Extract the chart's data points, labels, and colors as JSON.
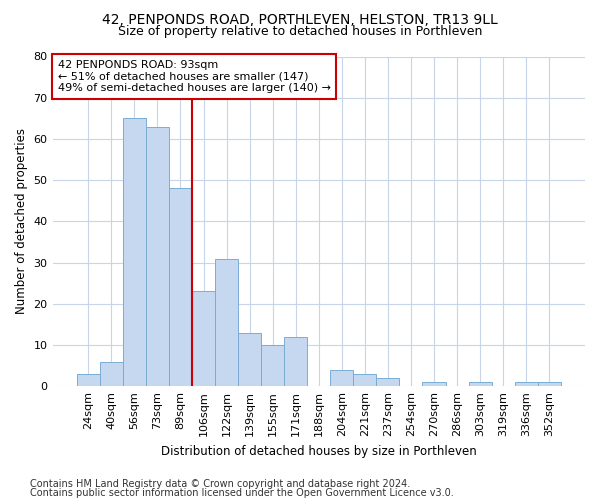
{
  "title1": "42, PENPONDS ROAD, PORTHLEVEN, HELSTON, TR13 9LL",
  "title2": "Size of property relative to detached houses in Porthleven",
  "xlabel": "Distribution of detached houses by size in Porthleven",
  "ylabel": "Number of detached properties",
  "categories": [
    "24sqm",
    "40sqm",
    "56sqm",
    "73sqm",
    "89sqm",
    "106sqm",
    "122sqm",
    "139sqm",
    "155sqm",
    "171sqm",
    "188sqm",
    "204sqm",
    "221sqm",
    "237sqm",
    "254sqm",
    "270sqm",
    "286sqm",
    "303sqm",
    "319sqm",
    "336sqm",
    "352sqm"
  ],
  "values": [
    3,
    6,
    65,
    63,
    48,
    23,
    31,
    13,
    10,
    12,
    0,
    4,
    3,
    2,
    0,
    1,
    0,
    1,
    0,
    1,
    1
  ],
  "bar_color": "#c5d8f0",
  "bar_edge_color": "#7aadd4",
  "annotation_text": "42 PENPONDS ROAD: 93sqm\n← 51% of detached houses are smaller (147)\n49% of semi-detached houses are larger (140) →",
  "annotation_box_color": "#ffffff",
  "annotation_box_edge_color": "#cc0000",
  "vline_color": "#cc0000",
  "vline_x_index": 4,
  "ylim": [
    0,
    80
  ],
  "yticks": [
    0,
    10,
    20,
    30,
    40,
    50,
    60,
    70,
    80
  ],
  "footer1": "Contains HM Land Registry data © Crown copyright and database right 2024.",
  "footer2": "Contains public sector information licensed under the Open Government Licence v3.0.",
  "bg_color": "#ffffff",
  "grid_color": "#c8d4e8",
  "title1_fontsize": 10,
  "title2_fontsize": 9,
  "annotation_fontsize": 8,
  "xlabel_fontsize": 8.5,
  "ylabel_fontsize": 8.5,
  "tick_fontsize": 8,
  "footer_fontsize": 7
}
